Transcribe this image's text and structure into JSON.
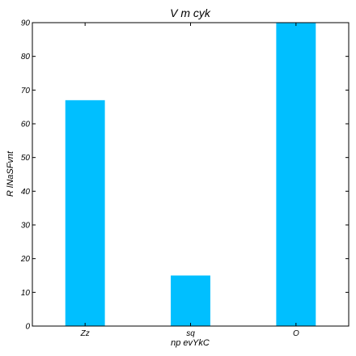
{
  "chart_data": {
    "type": "bar",
    "title": "V m  cyk",
    "xlabel": "np  evYkC",
    "ylabel": "R lNaSFvnt",
    "categories": [
      "Zz",
      "sq",
      "O"
    ],
    "values": [
      67,
      15,
      90
    ],
    "ylim": [
      0,
      90
    ],
    "yticks": [
      "0",
      "10",
      "20",
      "30",
      "40",
      "50",
      "60",
      "70",
      "80",
      "90"
    ],
    "grid": false,
    "bar_color": "#00bfff"
  }
}
